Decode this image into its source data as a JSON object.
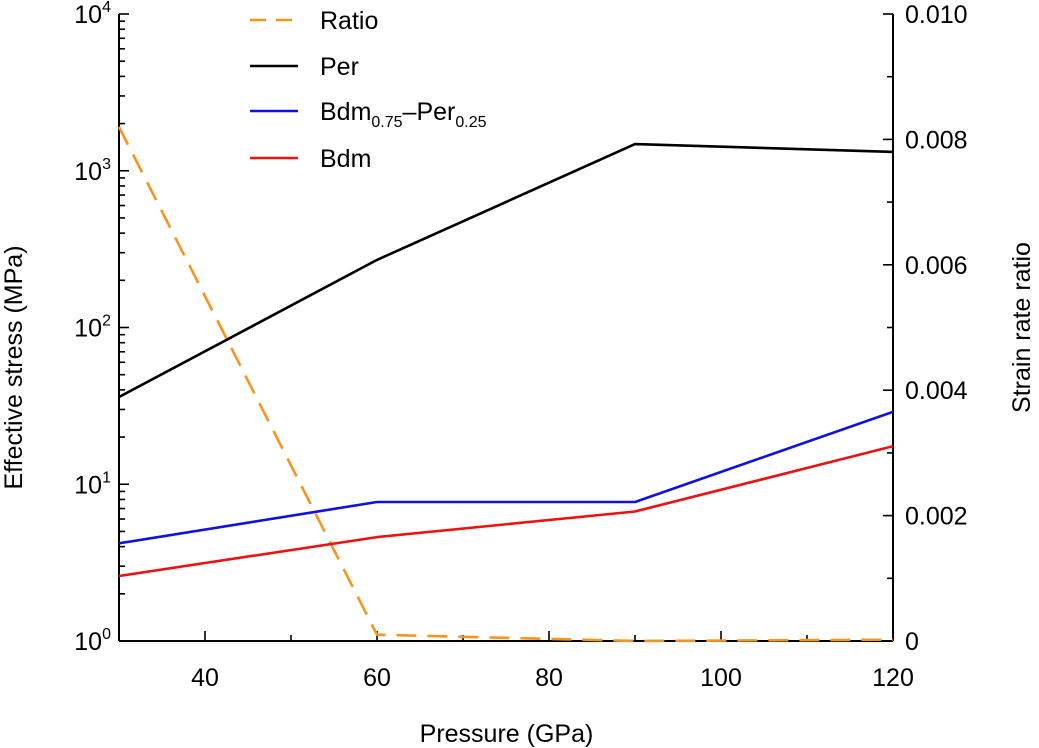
{
  "chart_data": {
    "type": "line",
    "title": "",
    "xlabel": "Pressure (GPa)",
    "ylabel_left": "Effective stress (MPa)",
    "ylabel_right": "Strain rate ratio",
    "xlim": [
      30,
      120
    ],
    "ylim_left": [
      1,
      10000
    ],
    "yscale_left": "log",
    "ylim_right": [
      0,
      0.01
    ],
    "x_ticks": [
      40,
      60,
      80,
      100,
      120
    ],
    "y_left_ticks": [
      {
        "base": "10",
        "exp": "0"
      },
      {
        "base": "10",
        "exp": "1"
      },
      {
        "base": "10",
        "exp": "2"
      },
      {
        "base": "10",
        "exp": "3"
      },
      {
        "base": "10",
        "exp": "4"
      }
    ],
    "y_right_ticks": [
      "0",
      "0.002",
      "0.004",
      "0.006",
      "0.008",
      "0.010"
    ],
    "legend_position": "top-left",
    "series": [
      {
        "name": "Ratio",
        "axis": "right",
        "color": "#f7941d",
        "dash": "dashed",
        "x": [
          30,
          60,
          90,
          120
        ],
        "y": [
          0.0082,
          0.0001,
          0.0,
          2e-05
        ]
      },
      {
        "name": "Per",
        "axis": "left",
        "color": "#000000",
        "x": [
          30,
          60,
          90,
          120
        ],
        "y": [
          36,
          270,
          1480,
          1320
        ]
      },
      {
        "name": "Bdm0.75–Per0.25",
        "name_parts": {
          "a": "Bdm",
          "a_sub": "0.75",
          "sep": "–",
          "b": "Per",
          "b_sub": "0.25"
        },
        "axis": "left",
        "color": "#1010e0",
        "x": [
          30,
          60,
          90,
          120
        ],
        "y": [
          4.2,
          7.7,
          7.7,
          29
        ]
      },
      {
        "name": "Bdm",
        "axis": "left",
        "color": "#ee1111",
        "x": [
          30,
          60,
          90,
          120
        ],
        "y": [
          2.6,
          4.6,
          6.7,
          17.5
        ]
      }
    ]
  }
}
